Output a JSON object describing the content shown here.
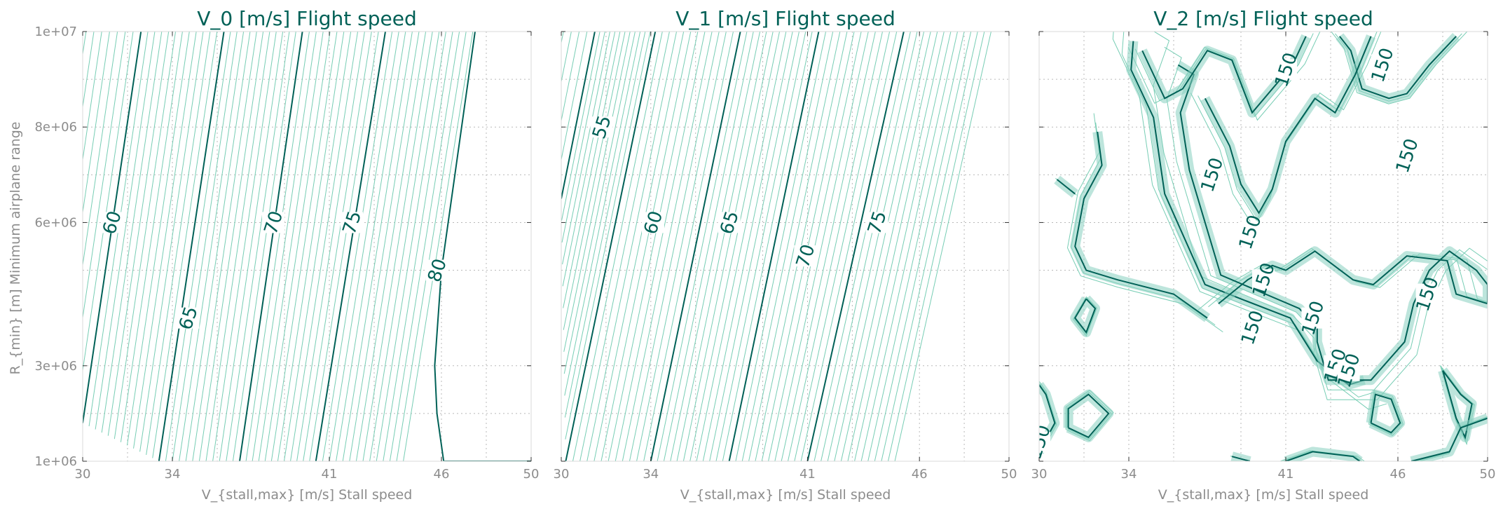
{
  "colors": {
    "major_line": "#006157",
    "minor_line": "#77cdb4",
    "fill_band": "#86cfbf",
    "title": "#006157",
    "axis_text": "#8c8c8c",
    "grid": "#b9b9b9"
  },
  "chart_data": [
    {
      "type": "contour",
      "title": "V_0 [m/s]  Flight speed",
      "xlabel": "V_{stall,max} [m/s]  Stall speed",
      "ylabel": "R_{min} [m]  Minimum airplane range",
      "x_ticks": [
        "30",
        "34",
        "41",
        "46",
        "50"
      ],
      "x_tick_values": [
        30,
        34,
        41,
        46,
        50
      ],
      "y_ticks": [
        "1e+06",
        "3e+06",
        "6e+06",
        "8e+06",
        "1e+07"
      ],
      "y_tick_values": [
        1000000,
        3000000,
        6000000,
        8000000,
        10000000
      ],
      "xlim": [
        30,
        50
      ],
      "ylim": [
        1000000,
        10000000
      ],
      "grid": true,
      "major_levels": [
        60,
        65,
        70,
        75,
        80
      ],
      "contour_labels": [
        "60",
        "65",
        "70",
        "75",
        "80"
      ],
      "contour_label_positions": [
        [
          31.3,
          6000000
        ],
        [
          34.7,
          4000000
        ],
        [
          38.5,
          6000000
        ],
        [
          42.0,
          6000000
        ],
        [
          45.8,
          5000000
        ]
      ],
      "contour_lines": [
        {
          "level": 60,
          "points": [
            [
              30.0,
              1800000
            ],
            [
              32.6,
              10000000
            ]
          ]
        },
        {
          "level": 65,
          "points": [
            [
              33.4,
              1000000
            ],
            [
              36.3,
              10000000
            ]
          ]
        },
        {
          "level": 70,
          "points": [
            [
              37.0,
              1000000
            ],
            [
              39.8,
              10000000
            ]
          ]
        },
        {
          "level": 75,
          "points": [
            [
              40.4,
              1000000
            ],
            [
              43.5,
              10000000
            ]
          ]
        },
        {
          "level": 80,
          "points": [
            [
              46.1,
              1000000
            ],
            [
              50.0,
              1000000
            ]
          ]
        },
        {
          "level": 80,
          "points": [
            [
              46.1,
              1000000
            ],
            [
              45.8,
              2000000
            ],
            [
              45.7,
              3000000
            ],
            [
              46.0,
              5000000
            ],
            [
              47.5,
              10000000
            ]
          ]
        }
      ]
    },
    {
      "type": "contour",
      "title": "V_1 [m/s]  Flight speed",
      "xlabel": "V_{stall,max} [m/s]  Stall speed",
      "x_ticks": [
        "30",
        "34",
        "41",
        "46",
        "50"
      ],
      "x_tick_values": [
        30,
        34,
        41,
        46,
        50
      ],
      "xlim": [
        30,
        50
      ],
      "ylim": [
        1000000,
        10000000
      ],
      "grid": true,
      "major_levels": [
        55,
        60,
        65,
        70,
        75
      ],
      "contour_labels": [
        "55",
        "60",
        "65",
        "70",
        "75"
      ],
      "contour_label_positions": [
        [
          31.8,
          8000000
        ],
        [
          34.1,
          6000000
        ],
        [
          37.5,
          6000000
        ],
        [
          40.9,
          5300000
        ],
        [
          44.1,
          6000000
        ]
      ],
      "contour_lines": [
        {
          "level": 55,
          "points": [
            [
              30.0,
              6500000
            ],
            [
              31.5,
              10000000
            ]
          ]
        },
        {
          "level": 60,
          "points": [
            [
              30.2,
              1000000
            ],
            [
              34.2,
              10000000
            ]
          ]
        },
        {
          "level": 65,
          "points": [
            [
              34.0,
              1000000
            ],
            [
              38.0,
              10000000
            ]
          ]
        },
        {
          "level": 70,
          "points": [
            [
              37.5,
              1000000
            ],
            [
              41.5,
              10000000
            ]
          ]
        },
        {
          "level": 75,
          "points": [
            [
              41.0,
              1000000
            ],
            [
              45.3,
              10000000
            ]
          ]
        }
      ]
    },
    {
      "type": "contour",
      "title": "V_2 [m/s]  Flight speed",
      "xlabel": "V_{stall,max} [m/s]  Stall speed",
      "x_ticks": [
        "30",
        "34",
        "41",
        "46",
        "50"
      ],
      "x_tick_values": [
        30,
        34,
        41,
        46,
        50
      ],
      "xlim": [
        30,
        50
      ],
      "ylim": [
        1000000,
        10000000
      ],
      "grid": true,
      "major_levels": [
        150
      ],
      "contour_labels": [
        "150",
        "150",
        "150",
        "150",
        "150",
        "150",
        "150",
        "150",
        "150",
        "150",
        "150",
        "150"
      ],
      "contour_label_positions": [
        [
          45.3,
          9300000
        ],
        [
          41.0,
          9200000
        ],
        [
          37.7,
          7000000
        ],
        [
          39.4,
          5800000
        ],
        [
          40.0,
          4800000
        ],
        [
          39.5,
          3800000
        ],
        [
          42.2,
          4000000
        ],
        [
          43.2,
          3000000
        ],
        [
          43.8,
          2900000
        ],
        [
          47.3,
          4500000
        ],
        [
          46.4,
          7400000
        ],
        [
          30.0,
          1400000
        ]
      ],
      "contour_lines": [
        {
          "level": 150,
          "points": [
            [
              34.2,
              9800000
            ],
            [
              34.1,
              9200000
            ],
            [
              35.1,
              8200000
            ],
            [
              35.6,
              6600000
            ],
            [
              37.4,
              4700000
            ],
            [
              39.0,
              4400000
            ],
            [
              41.2,
              4000000
            ],
            [
              42.4,
              3100000
            ],
            [
              43.8,
              2600000
            ],
            [
              44.5,
              2700000
            ]
          ]
        },
        {
          "level": 150,
          "points": [
            [
              36.2,
              9300000
            ],
            [
              36.9,
              9100000
            ],
            [
              36.3,
              8300000
            ],
            [
              36.7,
              7100000
            ],
            [
              38.1,
              4900000
            ],
            [
              40.1,
              4500000
            ],
            [
              41.6,
              4200000
            ],
            [
              42.4,
              3800000
            ],
            [
              42.4,
              3500000
            ],
            [
              42.9,
              2700000
            ],
            [
              44.8,
              2700000
            ],
            [
              46.3,
              3500000
            ],
            [
              46.7,
              4300000
            ],
            [
              47.4,
              5000000
            ],
            [
              48.3,
              5400000
            ],
            [
              49.5,
              5000000
            ],
            [
              50.0,
              4700000
            ],
            [
              50.0,
              4300000
            ],
            [
              48.6,
              4500000
            ],
            [
              48.2,
              5200000
            ],
            [
              46.4,
              5300000
            ],
            [
              44.9,
              4700000
            ],
            [
              44.0,
              4800000
            ],
            [
              42.3,
              5400000
            ],
            [
              41.0,
              5000000
            ],
            [
              40.4,
              5100000
            ],
            [
              39.3,
              4800000
            ],
            [
              38.0,
              4300000
            ]
          ]
        },
        {
          "level": 150,
          "points": [
            [
              43.4,
              9900000
            ],
            [
              43.9,
              9600000
            ],
            [
              44.4,
              8800000
            ],
            [
              45.6,
              8600000
            ],
            [
              46.4,
              8700000
            ],
            [
              47.4,
              9300000
            ],
            [
              48.6,
              9900000
            ]
          ]
        },
        {
          "level": 150,
          "points": [
            [
              37.4,
              8600000
            ],
            [
              38.5,
              7600000
            ],
            [
              39.0,
              6800000
            ],
            [
              39.8,
              6200000
            ],
            [
              40.4,
              6700000
            ],
            [
              41.0,
              7700000
            ],
            [
              42.3,
              8600000
            ],
            [
              43.2,
              8300000
            ],
            [
              44.1,
              9100000
            ],
            [
              44.8,
              9900000
            ]
          ]
        },
        {
          "level": 150,
          "points": [
            [
              34.6,
              9600000
            ],
            [
              35.6,
              8600000
            ],
            [
              36.4,
              8800000
            ],
            [
              37.5,
              9600000
            ],
            [
              38.6,
              9400000
            ],
            [
              39.5,
              8300000
            ],
            [
              41.3,
              9300000
            ],
            [
              41.9,
              9900000
            ]
          ]
        },
        {
          "level": 150,
          "points": [
            [
              32.6,
              7900000
            ],
            [
              32.8,
              7200000
            ],
            [
              32.0,
              6500000
            ],
            [
              31.6,
              5500000
            ],
            [
              32.1,
              5000000
            ],
            [
              33.5,
              4800000
            ],
            [
              36.0,
              4500000
            ],
            [
              37.5,
              4000000
            ]
          ]
        },
        {
          "level": 150,
          "points": [
            [
              30.8,
              6900000
            ],
            [
              31.6,
              6600000
            ]
          ]
        },
        {
          "level": 150,
          "points": [
            [
              44.8,
              1800000
            ],
            [
              45.7,
              1600000
            ],
            [
              46.1,
              1800000
            ],
            [
              45.7,
              2300000
            ],
            [
              45.0,
              2400000
            ],
            [
              44.8,
              1800000
            ]
          ]
        },
        {
          "level": 150,
          "points": [
            [
              48.0,
              2900000
            ],
            [
              48.8,
              2400000
            ],
            [
              49.3,
              2200000
            ],
            [
              49.0,
              1500000
            ],
            [
              48.6,
              1900000
            ],
            [
              48.0,
              2900000
            ]
          ]
        },
        {
          "level": 150,
          "points": [
            [
              31.3,
              1700000
            ],
            [
              32.2,
              1500000
            ],
            [
              33.1,
              2000000
            ],
            [
              32.2,
              2400000
            ],
            [
              31.3,
              2100000
            ],
            [
              31.3,
              1700000
            ]
          ]
        },
        {
          "level": 150,
          "points": [
            [
              30.0,
              1200000
            ],
            [
              30.7,
              1800000
            ],
            [
              30.3,
              2400000
            ],
            [
              30.0,
              2600000
            ]
          ]
        },
        {
          "level": 150,
          "points": [
            [
              32.1,
              4400000
            ],
            [
              32.5,
              4200000
            ],
            [
              32.1,
              3700000
            ],
            [
              31.6,
              4000000
            ],
            [
              32.1,
              4400000
            ]
          ]
        },
        {
          "level": 150,
          "points": [
            [
              38.6,
              1100000
            ],
            [
              39.4,
              1000000
            ]
          ]
        },
        {
          "level": 150,
          "points": [
            [
              41.0,
              1000000
            ],
            [
              42.2,
              1200000
            ],
            [
              44.0,
              1100000
            ],
            [
              44.3,
              1000000
            ]
          ]
        },
        {
          "level": 150,
          "points": [
            [
              46.6,
              1000000
            ],
            [
              48.3,
              1200000
            ],
            [
              48.8,
              1700000
            ],
            [
              50.0,
              1900000
            ]
          ]
        }
      ]
    }
  ]
}
